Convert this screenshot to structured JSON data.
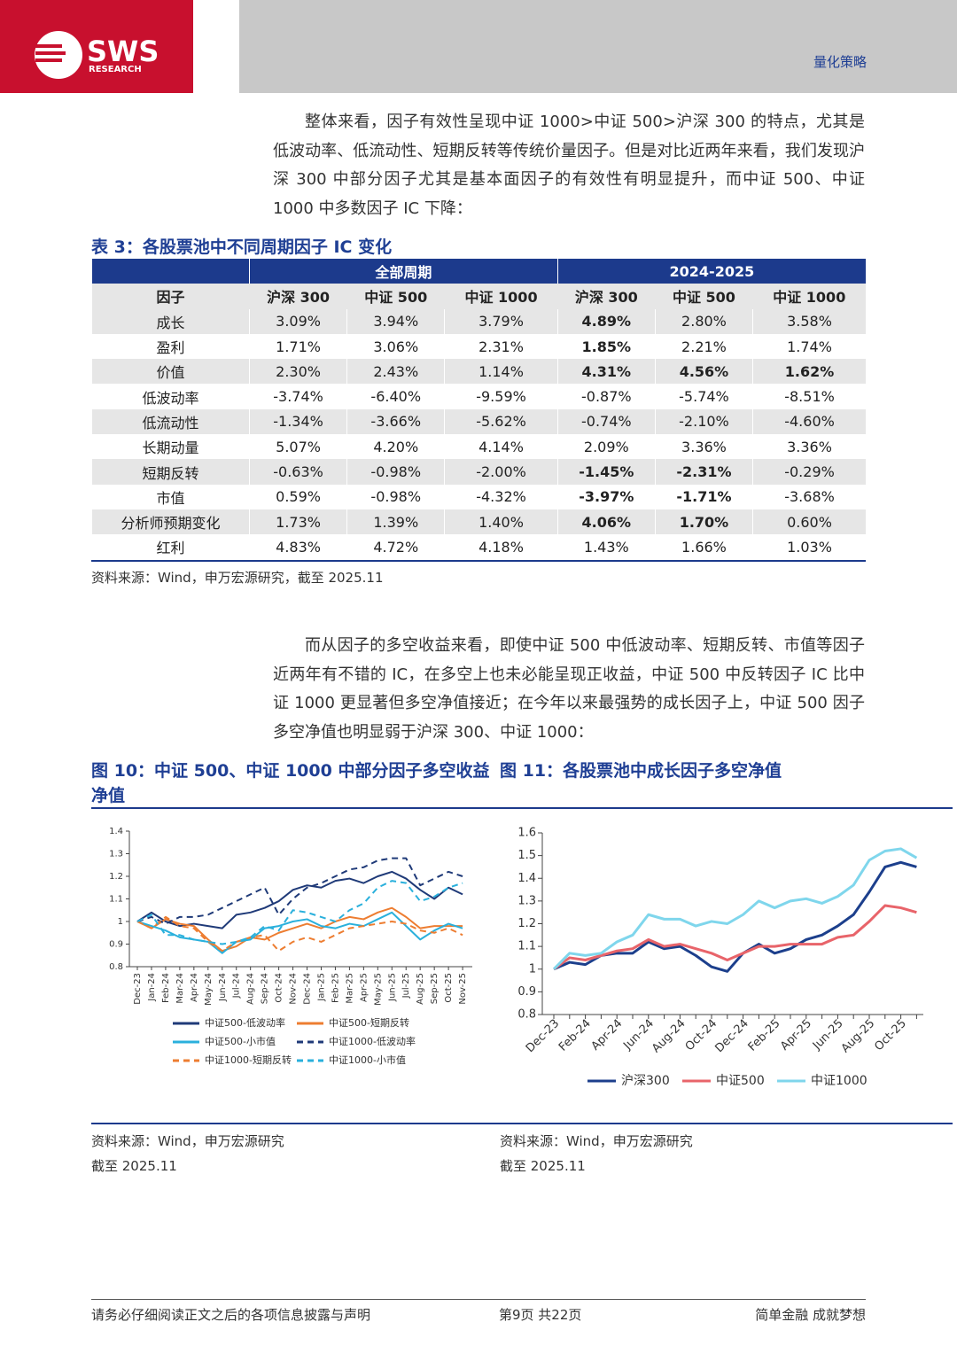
{
  "header": {
    "logo": "SWS",
    "logo_sub": "RESEARCH",
    "section": "量化策略"
  },
  "paragraphs": [
    "整体来看，因子有效性呈现中证 1000>中证 500>沪深 300 的特点，尤其是低波动率、低流动性、短期反转等传统价量因子。但是对比近两年来看，我们发现沪深 300 中部分因子尤其是基本面因子的有效性有明显提升，而中证 500、中证 1000 中多数因子 IC 下降：",
    "而从因子的多空收益来看，即使中证 500 中低波动率、短期反转、市值等因子近两年有不错的 IC，在多空上也未必能呈现正收益，中证 500 中反转因子 IC 比中证 1000 更显著但多空净值接近；在今年以来最强势的成长因子上，中证 500 因子多空净值也明显弱于沪深 300、中证 1000："
  ],
  "table": {
    "title": "表 3：各股票池中不同周期因子 IC 变化",
    "group_headers": [
      "全部周期",
      "2024-2025"
    ],
    "columns": [
      "因子",
      "沪深 300",
      "中证 500",
      "中证 1000",
      "沪深 300",
      "中证 500",
      "中证 1000"
    ],
    "rows": [
      {
        "factor": "成长",
        "values": [
          "3.09%",
          "3.94%",
          "3.79%",
          "4.89%",
          "2.80%",
          "3.58%"
        ],
        "bold": [
          3
        ]
      },
      {
        "factor": "盈利",
        "values": [
          "1.71%",
          "3.06%",
          "2.31%",
          "1.85%",
          "2.21%",
          "1.74%"
        ],
        "bold": [
          3
        ]
      },
      {
        "factor": "价值",
        "values": [
          "2.30%",
          "2.43%",
          "1.14%",
          "4.31%",
          "4.56%",
          "1.62%"
        ],
        "bold": [
          3,
          4,
          5
        ]
      },
      {
        "factor": "低波动率",
        "values": [
          "-3.74%",
          "-6.40%",
          "-9.59%",
          "-0.87%",
          "-5.74%",
          "-8.51%"
        ],
        "bold": []
      },
      {
        "factor": "低流动性",
        "values": [
          "-1.34%",
          "-3.66%",
          "-5.62%",
          "-0.74%",
          "-2.10%",
          "-4.60%"
        ],
        "bold": []
      },
      {
        "factor": "长期动量",
        "values": [
          "5.07%",
          "4.20%",
          "4.14%",
          "2.09%",
          "3.36%",
          "3.36%"
        ],
        "bold": []
      },
      {
        "factor": "短期反转",
        "values": [
          "-0.63%",
          "-0.98%",
          "-2.00%",
          "-1.45%",
          "-2.31%",
          "-0.29%"
        ],
        "bold": [
          3,
          4
        ]
      },
      {
        "factor": "市值",
        "values": [
          "0.59%",
          "-0.98%",
          "-4.32%",
          "-3.97%",
          "-1.71%",
          "-3.68%"
        ],
        "bold": [
          3,
          4
        ]
      },
      {
        "factor": "分析师预期变化",
        "values": [
          "1.73%",
          "1.39%",
          "1.40%",
          "4.06%",
          "1.70%",
          "0.60%"
        ],
        "bold": [
          3,
          4
        ]
      },
      {
        "factor": "红利",
        "values": [
          "4.83%",
          "4.72%",
          "4.18%",
          "1.43%",
          "1.66%",
          "1.03%"
        ],
        "bold": []
      }
    ],
    "source": "资料来源：Wind，申万宏源研究，截至 2025.11"
  },
  "figures": [
    {
      "source": "资料来源：Wind，申万宏源研究",
      "date": "截至 2025.11"
    },
    {
      "source": "资料来源：Wind，申万宏源研究",
      "date": "截至 2025.11"
    }
  ],
  "chart_data": [
    {
      "type": "line",
      "title": "图 10：中证 500、中证 1000 中部分因子多空收益净值",
      "categories": [
        "Dec-23",
        "Jan-24",
        "Feb-24",
        "Mar-24",
        "Apr-24",
        "May-24",
        "Jun-24",
        "Jul-24",
        "Aug-24",
        "Sep-24",
        "Oct-24",
        "Nov-24",
        "Dec-24",
        "Jan-25",
        "Feb-25",
        "Mar-25",
        "Apr-25",
        "May-25",
        "Jun-25",
        "Jul-25",
        "Aug-25",
        "Sep-25",
        "Oct-25",
        "Nov-25"
      ],
      "ylim": [
        0.8,
        1.4
      ],
      "yticks": [
        0.8,
        0.9,
        1,
        1.1,
        1.2,
        1.3,
        1.4
      ],
      "grid": false,
      "series": [
        {
          "name": "中证500-低波动率",
          "color": "#1f3a78",
          "dashed": false,
          "values": [
            1.0,
            1.04,
            1.0,
            0.98,
            0.99,
            0.98,
            0.97,
            1.03,
            1.04,
            1.06,
            1.09,
            1.14,
            1.16,
            1.15,
            1.18,
            1.19,
            1.17,
            1.2,
            1.22,
            1.19,
            1.14,
            1.1,
            1.15,
            1.12
          ]
        },
        {
          "name": "中证500-短期反转",
          "color": "#ed7d31",
          "dashed": false,
          "values": [
            1.0,
            0.97,
            1.01,
            0.99,
            0.98,
            0.92,
            0.87,
            0.89,
            0.93,
            0.92,
            0.95,
            0.97,
            0.99,
            0.97,
            1.0,
            1.02,
            1.01,
            1.04,
            1.06,
            1.02,
            0.97,
            0.98,
            0.98,
            0.98
          ]
        },
        {
          "name": "中证500-小市值",
          "color": "#2ab0dc",
          "dashed": false,
          "values": [
            1.0,
            0.98,
            0.96,
            0.93,
            0.92,
            0.91,
            0.86,
            0.91,
            0.92,
            0.97,
            0.98,
            1.0,
            1.01,
            0.98,
            0.97,
            0.99,
            0.98,
            1.01,
            1.04,
            0.98,
            0.92,
            0.96,
            0.99,
            0.97
          ]
        },
        {
          "name": "中证1000-低波动率",
          "color": "#1f3a78",
          "dashed": true,
          "values": [
            1.0,
            1.02,
            0.99,
            1.02,
            1.02,
            1.03,
            1.06,
            1.09,
            1.12,
            1.15,
            1.03,
            1.1,
            1.15,
            1.17,
            1.2,
            1.23,
            1.24,
            1.27,
            1.28,
            1.28,
            1.16,
            1.19,
            1.22,
            1.2
          ]
        },
        {
          "name": "中证1000-短期反转",
          "color": "#ed7d31",
          "dashed": true,
          "values": [
            1.0,
            0.97,
            1.02,
            0.98,
            0.97,
            0.91,
            0.87,
            0.91,
            0.93,
            0.94,
            0.87,
            0.91,
            0.93,
            0.91,
            0.94,
            0.97,
            0.98,
            0.99,
            1.0,
            0.99,
            0.96,
            0.95,
            0.97,
            0.94
          ]
        },
        {
          "name": "中证1000-小市值",
          "color": "#2ab0dc",
          "dashed": true,
          "values": [
            1.0,
            1.03,
            0.94,
            0.94,
            0.92,
            0.91,
            0.9,
            0.91,
            0.93,
            0.98,
            0.96,
            1.05,
            1.04,
            1.02,
            1.0,
            1.05,
            1.08,
            1.15,
            1.18,
            1.17,
            1.09,
            1.11,
            1.15,
            1.17
          ]
        }
      ]
    },
    {
      "type": "line",
      "title": "图 11：各股票池中成长因子多空净值",
      "categories": [
        "Dec-23",
        null,
        "Feb-24",
        null,
        "Apr-24",
        null,
        "Jun-24",
        null,
        "Aug-24",
        null,
        "Oct-24",
        null,
        "Dec-24",
        null,
        "Feb-25",
        null,
        "Apr-25",
        null,
        "Jun-25",
        null,
        "Aug-25",
        null,
        "Oct-25",
        null
      ],
      "ylim": [
        0.8,
        1.6
      ],
      "yticks": [
        0.8,
        0.9,
        1,
        1.1,
        1.2,
        1.3,
        1.4,
        1.5,
        1.6
      ],
      "grid": false,
      "series": [
        {
          "name": "沪深300",
          "color": "#1c3f8c",
          "dashed": false,
          "values": [
            1.0,
            1.03,
            1.02,
            1.06,
            1.07,
            1.07,
            1.12,
            1.09,
            1.1,
            1.06,
            1.01,
            0.99,
            1.07,
            1.11,
            1.07,
            1.09,
            1.13,
            1.15,
            1.19,
            1.24,
            1.34,
            1.45,
            1.47,
            1.45
          ]
        },
        {
          "name": "中证500",
          "color": "#e8646a",
          "dashed": false,
          "values": [
            1.0,
            1.05,
            1.04,
            1.06,
            1.08,
            1.09,
            1.13,
            1.1,
            1.11,
            1.09,
            1.07,
            1.04,
            1.07,
            1.1,
            1.1,
            1.11,
            1.11,
            1.11,
            1.14,
            1.15,
            1.21,
            1.28,
            1.27,
            1.25
          ]
        },
        {
          "name": "中证1000",
          "color": "#7fd6ec",
          "dashed": false,
          "values": [
            1.0,
            1.07,
            1.06,
            1.07,
            1.12,
            1.15,
            1.24,
            1.22,
            1.22,
            1.19,
            1.21,
            1.2,
            1.24,
            1.3,
            1.27,
            1.3,
            1.31,
            1.29,
            1.32,
            1.37,
            1.48,
            1.52,
            1.53,
            1.49
          ]
        }
      ]
    }
  ],
  "footer": {
    "left": "请务必仔细阅读正文之后的各项信息披露与声明",
    "center": "第9页 共22页",
    "right": "简单金融 成就梦想"
  }
}
